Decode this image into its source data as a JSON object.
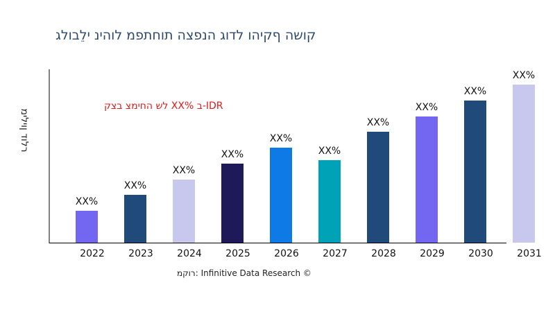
{
  "chart_data": {
    "type": "bar",
    "title": "קושה ףקיהו לדוג הנפצה תוחתפמ לוהינ ילֵבולג",
    "ylabel": "רלוד ןוילימ",
    "xlabel": "",
    "annotation": "לש החימצ בצק XX% ב-IDR",
    "source": "רוקמ: Infinitive Data Research ©",
    "grid": false,
    "categories": [
      "2022",
      "2023",
      "2024",
      "2025",
      "2026",
      "2027",
      "2028",
      "2029",
      "2030",
      "2031"
    ],
    "values": [
      46,
      69,
      91,
      114,
      137,
      119,
      160,
      182,
      205,
      228
    ],
    "data_labels": [
      "XX%",
      "XX%",
      "XX%",
      "XX%",
      "XX%",
      "XX%",
      "XX%",
      "XX%",
      "XX%",
      "XX%"
    ],
    "colors": [
      "#7366f0",
      "#1f4a7a",
      "#c8c8ef",
      "#1e1a5a",
      "#0d7ae6",
      "#00a2b8",
      "#1f4a7a",
      "#7366f0",
      "#1f4a7a",
      "#c8c8ef"
    ],
    "ylim": [
      0,
      250
    ]
  }
}
